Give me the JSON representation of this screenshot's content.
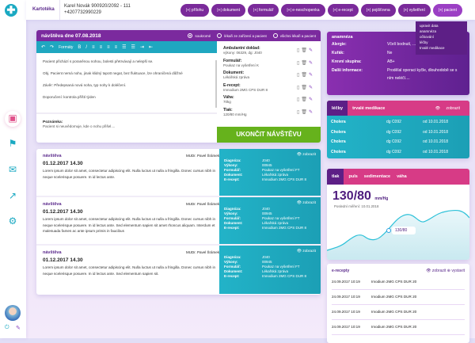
{
  "app": {
    "title": "Kartotéka",
    "patient_name": "Karel Novák 900920/2092 - 111",
    "patient_phone": "+4207732990229"
  },
  "header_buttons": [
    "přílohu",
    "dokument",
    "formulář",
    "e-neschopenka",
    "e-recept",
    "pojišťovna",
    "vyšetření",
    "pacient"
  ],
  "button_prefix": "|+|",
  "dropdown": [
    "upravit data",
    "anamnéza",
    "očkování",
    "léčby",
    "trvalé medikace"
  ],
  "visit": {
    "title": "návštěva dne 07.08.2018",
    "radios": [
      {
        "label": "soukromé",
        "selected": true
      },
      {
        "label": "lékaři ze zařízení a pacient",
        "selected": false
      },
      {
        "label": "všichni lékaři a pacient",
        "selected": false
      }
    ],
    "toolbar": {
      "formats": "Formáty"
    },
    "text": [
      "Pacient přichází s poraněnou nohou, bolesti přetrvávají a nelepší se.",
      "Obj. Pacient nemá nohu, jinak klidný tapott negat, bez fluktuace, lze ohraničená důlžné",
      "Závěr: Předepsaná nová noha, typ nohy k doléčení.",
      "Doporučení: kontrola příští týden"
    ],
    "note_label": "Poznámka:",
    "note": "Pacient si neuvědomuje, kde o nohu přišel....",
    "attachments": [
      {
        "label": "Ambulantní doklad:",
        "value": "výkony: 06329, dg: J040"
      },
      {
        "label": "Formulář:",
        "value": "Poukaz na vyšetření K"
      },
      {
        "label": "Dokument:",
        "value": "Lékářská zpráva"
      },
      {
        "label": "E-recept:",
        "value": "Imnodium 2MG CPS DUR 8"
      },
      {
        "label": "Váha:",
        "value": "70kg"
      },
      {
        "label": "Tlak:",
        "value": "120/80 mm/Hg"
      }
    ],
    "end_button": "UKONČIT NÁVŠTĚVU"
  },
  "history": [
    {
      "type": "návštěva",
      "date": "01.12.2017 14.30",
      "doctor": "MUDr. Pavel Šrámek",
      "text": "Lorem ipsum dolor sit amet, consectetur adipiscing elit. Nulla luctus ut nulla a fringilla. Donec cursus nibh in neque scelerisque posuere. In id lectus ante.",
      "show": "zobrazit",
      "details": [
        [
          "Diagnóza:",
          "J040"
        ],
        [
          "Výkony:",
          "00945"
        ],
        [
          "Formulář:",
          "Poukaz na vyšetření FT"
        ],
        [
          "Dokument:",
          "Lékařská zpráva"
        ],
        [
          "E-recept:",
          "Imnodium 2MG CPS DUR 8"
        ]
      ]
    },
    {
      "type": "návštěva",
      "date": "01.12.2017 14.30",
      "doctor": "MUDr. Pavel Šrámek",
      "text": "Lorem ipsum dolor sit amet, consectetur adipiscing elit. Nulla luctus ut nulla a fringilla. Donec cursus nibh in neque scelerisque posuere. In id lectus ante. Sed elementum sapien sit amet rhoncus aliquam. Interdum et malesuada fames ac ante ipsum primis in faucibus",
      "show": "zobrazit",
      "details": [
        [
          "Diagnóza:",
          "J040"
        ],
        [
          "Výkony:",
          "00945"
        ],
        [
          "Formulář:",
          "Poukaz na vyšetření FT"
        ],
        [
          "Dokument:",
          "Lékařská zpráva"
        ],
        [
          "E-recept:",
          "Imnodium 2MG CPS DUR 8"
        ]
      ]
    },
    {
      "type": "návštěva",
      "date": "01.12.2017 14.30",
      "doctor": "MUDr. Pavel Šrámek",
      "text": "Lorem ipsum dolor sit amet, consectetur adipiscing elit. Nulla luctus ut nulla a fringilla. Donec cursus nibh in neque scelerisque posuere. In id lectus ante. Sed elementum sapien sit.",
      "show": "zobrazit",
      "details": [
        [
          "Diagnóza:",
          "J040"
        ],
        [
          "Výkony:",
          "00945"
        ],
        [
          "Formulář:",
          "Poukaz na vyšetření FT"
        ],
        [
          "Dokument:",
          "Lékařská zpráva"
        ],
        [
          "E-recept:",
          "Imnodium 2MG CPS DUR 8"
        ]
      ]
    }
  ],
  "anamneza": {
    "title": "anamnéza",
    "rows": [
      [
        "Alergie:",
        "Včelí bodnutí, ..."
      ],
      [
        "Kuřák:",
        "Ne"
      ],
      [
        "Krevní skupina:",
        "AB+"
      ],
      [
        "Další informace:",
        "Prodělal operaci kyčle, dlouhodobě se s ním neléčí...."
      ]
    ]
  },
  "lecby": {
    "tabs": [
      "léčby",
      "trvalé medikace"
    ],
    "show": "zobrazit",
    "rows": [
      [
        "Cholera",
        "dg C092",
        "od 10.01.2018"
      ],
      [
        "Cholera",
        "dg C092",
        "od 10.01.2018"
      ],
      [
        "Cholera",
        "dg C092",
        "od 10.01.2018"
      ],
      [
        "Cholera",
        "dg C092",
        "od 10.01.2018"
      ]
    ]
  },
  "vitals": {
    "tabs": [
      "tlak",
      "puls",
      "sedimentace",
      "váha"
    ],
    "value": "130/80",
    "unit": "mm/Hg",
    "last": "Poslední měření: 10.01.2018",
    "point_label": "130/80"
  },
  "erecepty": {
    "title": "e-recepty",
    "show": "zobrazit",
    "issue": "vystavit",
    "rows": [
      [
        "24.09.2017 10:19",
        "Imodium 2MG CPS DUR 20"
      ],
      [
        "24.09.2017 10:19",
        "Imodium 2MG CPS DUR 20"
      ],
      [
        "24.09.2017 10:19",
        "Imodium 2MG CPS DUR 20"
      ],
      [
        "24.09.2017 10:19",
        "Imodium 2MG CPS DUR 20"
      ]
    ]
  },
  "colors": {
    "purple": "#7b2a9e",
    "teal": "#1fa7c0",
    "pink": "#d73b86",
    "green": "#66b21c"
  }
}
